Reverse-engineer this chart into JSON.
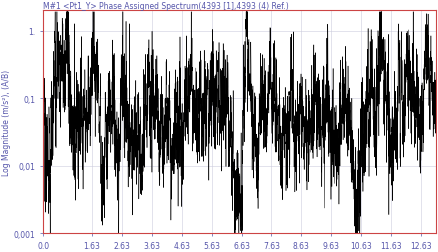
{
  "title": "M#1 <Pt1_Y> Phase Assigned Spectrum(4393 [1],4393 (4) Ref.)",
  "xlabel": "",
  "ylabel": "Log Magnitude (m/s²), (A/B)",
  "xlim": [
    0.0,
    13.13
  ],
  "ylim": [
    0.001,
    2.0
  ],
  "xticks": [
    0.0,
    1.63,
    2.63,
    3.63,
    4.63,
    5.63,
    6.63,
    7.63,
    8.63,
    9.63,
    10.63,
    11.63,
    12.63
  ],
  "xtick_labels": [
    "0.0",
    "1.63",
    "2.63",
    "3.63",
    "4.63",
    "5.63",
    "6.63",
    "7.63",
    "8.63",
    "9.63",
    "10.63",
    "11.63",
    "12.63"
  ],
  "yticks": [
    0.001,
    0.01,
    0.1,
    1.0
  ],
  "ytick_labels": [
    "0,001",
    "0,01",
    "0,1",
    "1."
  ],
  "line_color": "#000000",
  "title_color": "#5555aa",
  "axis_label_color": "#5555aa",
  "tick_label_color": "#5555aa",
  "background_color": "#ffffff",
  "border_color": "#cc4444",
  "grid_color": "#ccccdd",
  "title_fontsize": 5.5,
  "axis_label_fontsize": 5.5,
  "tick_fontsize": 5.5,
  "line_width": 0.35,
  "fs": 30,
  "n_points": 4000,
  "seed": 17
}
